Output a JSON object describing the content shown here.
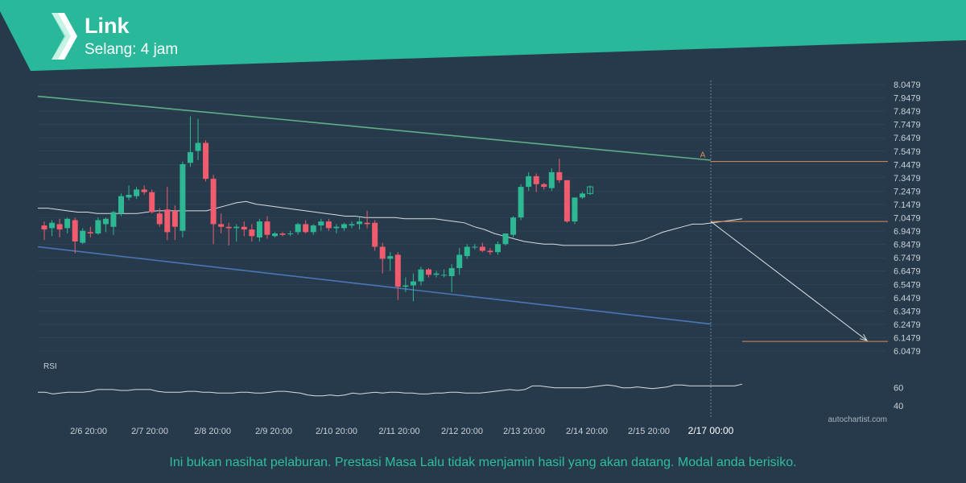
{
  "header": {
    "title": "Link",
    "subtitle": "Selang: 4 jam",
    "band_color": "#29b89a"
  },
  "chart_data": {
    "type": "candlestick",
    "symbol": "Link",
    "interval": "Selang: 4 jam",
    "y_ticks": [
      "8.0479",
      "7.9479",
      "7.8479",
      "7.7479",
      "7.6479",
      "7.5479",
      "7.4479",
      "7.3479",
      "7.2479",
      "7.1479",
      "7.0479",
      "6.9479",
      "6.8479",
      "6.7479",
      "6.6479",
      "6.5479",
      "6.4479",
      "6.3479",
      "6.2479",
      "6.1479",
      "6.0479"
    ],
    "ylim": [
      6.0479,
      8.0479
    ],
    "x_ticks": [
      "2/6 20:00",
      "2/7 20:00",
      "2/8 20:00",
      "2/9 20:00",
      "2/10 20:00",
      "2/11 20:00",
      "2/12 20:00",
      "2/13 20:00",
      "2/14 20:00",
      "2/15 20:00",
      "2/17 00:00"
    ],
    "highlighted_x_tick": "2/17 00:00",
    "candles": [
      {
        "o": 6.99,
        "h": 7.02,
        "l": 6.88,
        "c": 6.96
      },
      {
        "o": 6.97,
        "h": 7.03,
        "l": 6.91,
        "c": 7.01
      },
      {
        "o": 7.0,
        "h": 7.04,
        "l": 6.9,
        "c": 6.96
      },
      {
        "o": 6.97,
        "h": 7.05,
        "l": 6.93,
        "c": 7.04
      },
      {
        "o": 7.03,
        "h": 7.05,
        "l": 6.78,
        "c": 6.87
      },
      {
        "o": 6.86,
        "h": 6.97,
        "l": 6.85,
        "c": 6.95
      },
      {
        "o": 6.94,
        "h": 6.98,
        "l": 6.9,
        "c": 6.93
      },
      {
        "o": 6.93,
        "h": 7.05,
        "l": 6.92,
        "c": 7.03
      },
      {
        "o": 7.0,
        "h": 7.05,
        "l": 6.94,
        "c": 7.04
      },
      {
        "o": 6.98,
        "h": 7.1,
        "l": 6.92,
        "c": 7.09
      },
      {
        "o": 7.08,
        "h": 7.23,
        "l": 7.06,
        "c": 7.21
      },
      {
        "o": 7.2,
        "h": 7.29,
        "l": 7.18,
        "c": 7.22
      },
      {
        "o": 7.21,
        "h": 7.28,
        "l": 7.19,
        "c": 7.26
      },
      {
        "o": 7.26,
        "h": 7.29,
        "l": 7.22,
        "c": 7.24
      },
      {
        "o": 7.24,
        "h": 7.26,
        "l": 7.08,
        "c": 7.09
      },
      {
        "o": 7.08,
        "h": 7.12,
        "l": 6.98,
        "c": 7.0
      },
      {
        "o": 7.11,
        "h": 7.28,
        "l": 6.88,
        "c": 6.94
      },
      {
        "o": 7.1,
        "h": 7.14,
        "l": 6.88,
        "c": 6.98
      },
      {
        "o": 6.95,
        "h": 7.47,
        "l": 6.9,
        "c": 7.45
      },
      {
        "o": 7.46,
        "h": 7.81,
        "l": 7.43,
        "c": 7.54
      },
      {
        "o": 7.55,
        "h": 7.79,
        "l": 7.48,
        "c": 7.61
      },
      {
        "o": 7.61,
        "h": 7.63,
        "l": 7.32,
        "c": 7.34
      },
      {
        "o": 7.34,
        "h": 7.37,
        "l": 6.85,
        "c": 7.0
      },
      {
        "o": 7.0,
        "h": 7.08,
        "l": 6.93,
        "c": 6.98
      },
      {
        "o": 6.98,
        "h": 7.01,
        "l": 6.84,
        "c": 6.97
      },
      {
        "o": 6.97,
        "h": 7.0,
        "l": 6.87,
        "c": 6.98
      },
      {
        "o": 6.98,
        "h": 7.02,
        "l": 6.91,
        "c": 6.96
      },
      {
        "o": 6.96,
        "h": 7.0,
        "l": 6.87,
        "c": 6.91
      },
      {
        "o": 6.9,
        "h": 7.04,
        "l": 6.87,
        "c": 7.02
      },
      {
        "o": 7.02,
        "h": 7.06,
        "l": 6.89,
        "c": 6.92
      },
      {
        "o": 6.91,
        "h": 6.94,
        "l": 6.9,
        "c": 6.93
      },
      {
        "o": 6.93,
        "h": 6.94,
        "l": 6.91,
        "c": 6.92
      },
      {
        "o": 6.93,
        "h": 6.95,
        "l": 6.91,
        "c": 6.93
      },
      {
        "o": 6.94,
        "h": 7.01,
        "l": 6.92,
        "c": 7.0
      },
      {
        "o": 7.0,
        "h": 7.03,
        "l": 6.93,
        "c": 6.94
      },
      {
        "o": 6.94,
        "h": 7.0,
        "l": 6.92,
        "c": 6.99
      },
      {
        "o": 6.99,
        "h": 7.04,
        "l": 6.95,
        "c": 7.02
      },
      {
        "o": 7.02,
        "h": 7.04,
        "l": 6.95,
        "c": 6.97
      },
      {
        "o": 6.97,
        "h": 7.0,
        "l": 6.93,
        "c": 6.98
      },
      {
        "o": 6.97,
        "h": 7.01,
        "l": 6.95,
        "c": 7.0
      },
      {
        "o": 6.99,
        "h": 7.02,
        "l": 6.97,
        "c": 7.0
      },
      {
        "o": 7.0,
        "h": 7.05,
        "l": 6.96,
        "c": 7.02
      },
      {
        "o": 7.01,
        "h": 7.1,
        "l": 6.97,
        "c": 7.0
      },
      {
        "o": 7.01,
        "h": 7.03,
        "l": 6.8,
        "c": 6.83
      },
      {
        "o": 6.83,
        "h": 6.86,
        "l": 6.63,
        "c": 6.74
      },
      {
        "o": 6.74,
        "h": 6.79,
        "l": 6.65,
        "c": 6.76
      },
      {
        "o": 6.77,
        "h": 6.79,
        "l": 6.43,
        "c": 6.53
      },
      {
        "o": 6.53,
        "h": 6.6,
        "l": 6.49,
        "c": 6.54
      },
      {
        "o": 6.54,
        "h": 6.63,
        "l": 6.42,
        "c": 6.57
      },
      {
        "o": 6.57,
        "h": 6.68,
        "l": 6.54,
        "c": 6.66
      },
      {
        "o": 6.66,
        "h": 6.67,
        "l": 6.6,
        "c": 6.62
      },
      {
        "o": 6.62,
        "h": 6.65,
        "l": 6.6,
        "c": 6.63
      },
      {
        "o": 6.62,
        "h": 6.66,
        "l": 6.6,
        "c": 6.62
      },
      {
        "o": 6.61,
        "h": 6.7,
        "l": 6.49,
        "c": 6.67
      },
      {
        "o": 6.67,
        "h": 6.82,
        "l": 6.62,
        "c": 6.77
      },
      {
        "o": 6.76,
        "h": 6.85,
        "l": 6.74,
        "c": 6.83
      },
      {
        "o": 6.83,
        "h": 6.85,
        "l": 6.81,
        "c": 6.83
      },
      {
        "o": 6.83,
        "h": 6.86,
        "l": 6.79,
        "c": 6.8
      },
      {
        "o": 6.8,
        "h": 6.82,
        "l": 6.77,
        "c": 6.79
      },
      {
        "o": 6.79,
        "h": 6.87,
        "l": 6.77,
        "c": 6.85
      },
      {
        "o": 6.85,
        "h": 6.93,
        "l": 6.84,
        "c": 6.93
      },
      {
        "o": 6.92,
        "h": 7.06,
        "l": 6.9,
        "c": 7.05
      },
      {
        "o": 7.05,
        "h": 7.3,
        "l": 7.03,
        "c": 7.28
      },
      {
        "o": 7.28,
        "h": 7.39,
        "l": 7.25,
        "c": 7.36
      },
      {
        "o": 7.36,
        "h": 7.38,
        "l": 7.24,
        "c": 7.3
      },
      {
        "o": 7.3,
        "h": 7.31,
        "l": 7.26,
        "c": 7.28
      },
      {
        "o": 7.27,
        "h": 7.42,
        "l": 7.25,
        "c": 7.39
      },
      {
        "o": 7.39,
        "h": 7.49,
        "l": 7.31,
        "c": 7.33
      },
      {
        "o": 7.33,
        "h": 7.33,
        "l": 7.01,
        "c": 7.02
      },
      {
        "o": 7.02,
        "h": 7.2,
        "l": 7.0,
        "c": 7.2
      },
      {
        "o": 7.2,
        "h": 7.24,
        "l": 7.19,
        "c": 7.23
      },
      {
        "o": 7.23,
        "h": 7.29,
        "l": 7.22,
        "c": 7.28
      }
    ],
    "last_candle_hollow": true,
    "moving_average": [
      7.12,
      7.12,
      7.11,
      7.1,
      7.09,
      7.09,
      7.08,
      7.08,
      7.08,
      7.08,
      7.08,
      7.09,
      7.1,
      7.1,
      7.1,
      7.1,
      7.1,
      7.1,
      7.12,
      7.14,
      7.16,
      7.17,
      7.15,
      7.14,
      7.13,
      7.12,
      7.11,
      7.1,
      7.09,
      7.08,
      7.07,
      7.06,
      7.06,
      7.05,
      7.05,
      7.05,
      7.05,
      7.04,
      7.04,
      7.04,
      7.04,
      7.03,
      7.02,
      7.01,
      6.98,
      6.96,
      6.93,
      6.91,
      6.89,
      6.87,
      6.86,
      6.85,
      6.85,
      6.84,
      6.84,
      6.84,
      6.84,
      6.84,
      6.84,
      6.85,
      6.86,
      6.88,
      6.91,
      6.94,
      6.96,
      6.98,
      7.0,
      7.0,
      7.01,
      7.02,
      7.03,
      7.04
    ],
    "channel": {
      "upper_line": {
        "start": 7.96,
        "end": 7.48,
        "color": "#5fae85"
      },
      "lower_line": {
        "start": 6.83,
        "end": 6.25,
        "color": "#4a76b5"
      }
    },
    "pattern_label": "A",
    "resistance_level": 7.47,
    "breakout_level": 7.02,
    "target_level": 6.12,
    "level_color": "#e08a5a",
    "rsi": {
      "label": "RSI",
      "ticks": [
        "60",
        "40"
      ],
      "ylim": [
        30,
        75
      ],
      "values": [
        55,
        55,
        53,
        54,
        55,
        55,
        55,
        56,
        58,
        58,
        58,
        57,
        57,
        58,
        58,
        58,
        56,
        55,
        55,
        55,
        56,
        56,
        55,
        55,
        54,
        54,
        54,
        55,
        55,
        54,
        54,
        55,
        56,
        56,
        55,
        54,
        52,
        51,
        51,
        52,
        51,
        52,
        54,
        53,
        54,
        55,
        54,
        55,
        55,
        54,
        54,
        53,
        53,
        54,
        54,
        55,
        55,
        54,
        54,
        54,
        55,
        56,
        57,
        58,
        57,
        58,
        62,
        62,
        61,
        60,
        60,
        60,
        60,
        60,
        61,
        62,
        63,
        62,
        60,
        60,
        61,
        60,
        59,
        60,
        61,
        63,
        63,
        62,
        62,
        62,
        62,
        62,
        62,
        62,
        64
      ]
    },
    "colors": {
      "bull": "#2db893",
      "bear": "#f05c6e",
      "grid": "#33495c",
      "axis_text": "#c8d0d8",
      "ma": "#d8dde2"
    }
  },
  "watermark": "autochartist.com",
  "disclaimer": "Ini bukan nasihat pelaburan. Prestasi Masa Lalu tidak menjamin hasil yang akan datang. Modal anda berisiko."
}
